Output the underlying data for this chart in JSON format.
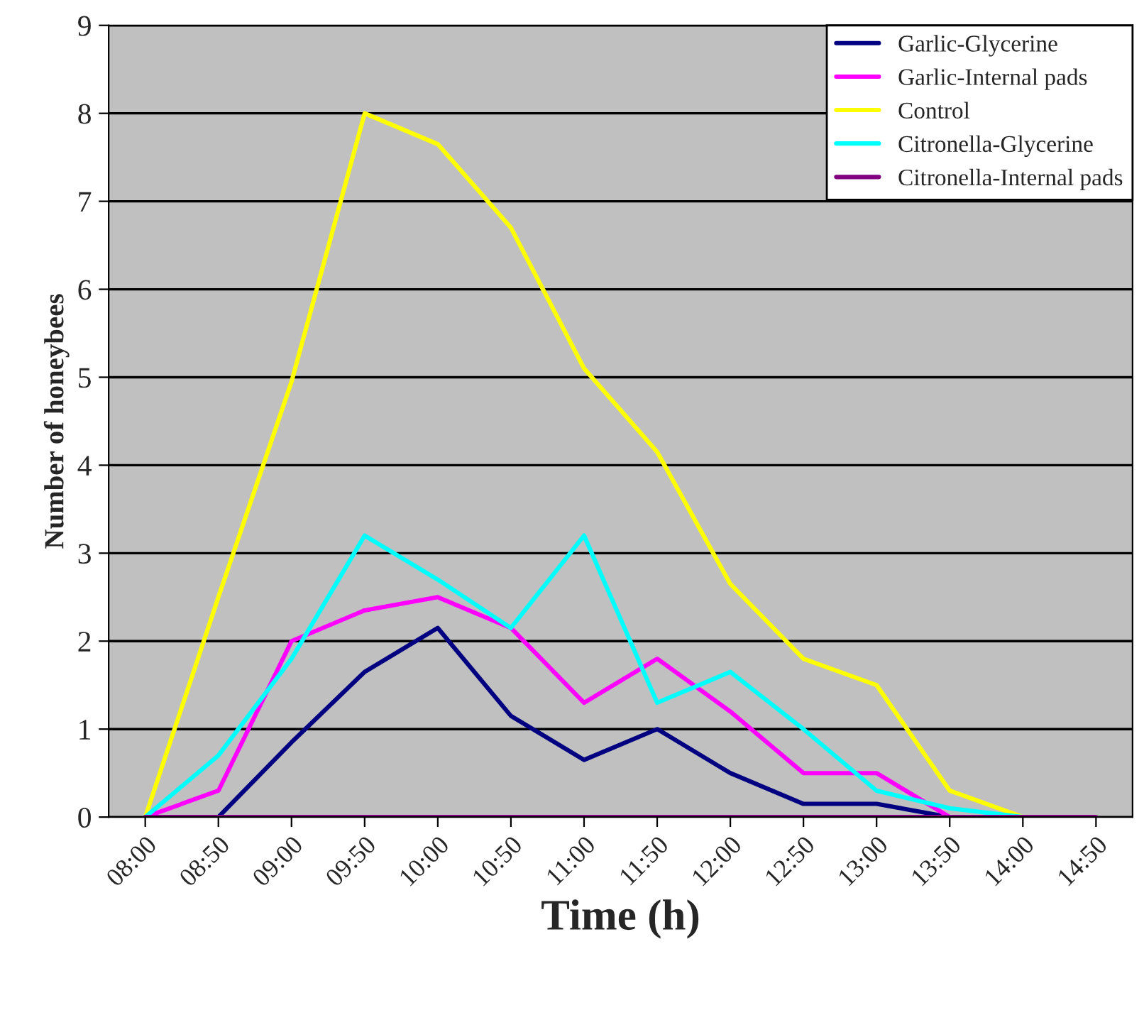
{
  "chart_data": {
    "type": "line",
    "xlabel": "Time (h)",
    "ylabel": "Number of honeybees",
    "categories": [
      "08:00",
      "08:50",
      "09:00",
      "09:50",
      "10:00",
      "10:50",
      "11:00",
      "11:50",
      "12:00",
      "12:50",
      "13:00",
      "13:50",
      "14:00",
      "14:50"
    ],
    "series": [
      {
        "name": "Garlic-Glycerine",
        "color": "#000080",
        "values": [
          0,
          0,
          0.85,
          1.65,
          2.15,
          1.15,
          0.65,
          1.0,
          0.5,
          0.15,
          0.15,
          0,
          null,
          null
        ]
      },
      {
        "name": "Garlic-Internal pads",
        "color": "#ff00ff",
        "values": [
          0,
          0.3,
          2.0,
          2.35,
          2.5,
          2.15,
          1.3,
          1.8,
          1.2,
          0.5,
          0.5,
          0,
          null,
          null
        ]
      },
      {
        "name": "Control",
        "color": "#ffff00",
        "values": [
          0,
          2.5,
          4.95,
          8.0,
          7.65,
          6.7,
          5.1,
          4.15,
          2.65,
          1.8,
          1.5,
          0.3,
          0,
          null
        ]
      },
      {
        "name": "Citronella-Glycerine",
        "color": "#00ffff",
        "values": [
          0,
          0.7,
          1.8,
          3.2,
          2.7,
          2.15,
          3.2,
          1.3,
          1.65,
          1.0,
          0.3,
          0.1,
          0,
          null
        ]
      },
      {
        "name": "Citronella-Internal pads",
        "color": "#800080",
        "values": [
          0,
          0,
          0,
          0,
          0,
          0,
          0,
          0,
          0,
          0,
          0,
          0,
          0,
          0
        ]
      }
    ],
    "ylim": [
      0,
      9
    ],
    "yticks": [
      0,
      1,
      2,
      3,
      4,
      5,
      6,
      7,
      8,
      9
    ],
    "grid": "y",
    "legend": "top right",
    "marker": "none",
    "line_style": "solid"
  }
}
